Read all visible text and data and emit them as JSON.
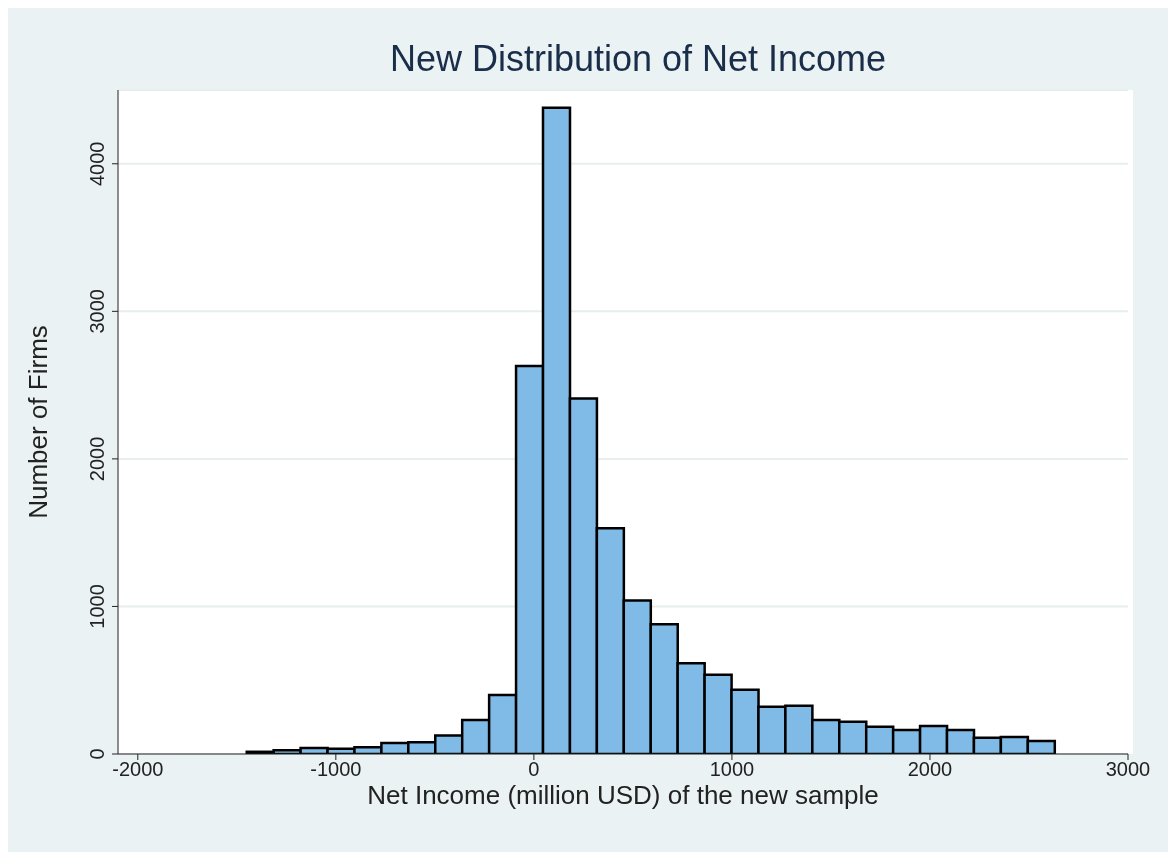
{
  "chart_data": {
    "type": "histogram",
    "title": "New Distribution of Net Income",
    "xlabel": "Net Income (million USD) of the new sample",
    "ylabel": "Number of Firms",
    "bins": [
      -1450,
      -1314,
      -1178,
      -1042,
      -906,
      -770,
      -634,
      -498,
      -362,
      -226,
      -90,
      46,
      182,
      318,
      454,
      590,
      726,
      862,
      998,
      1134,
      1270,
      1406,
      1542,
      1678,
      1814,
      1950,
      2086,
      2222,
      2358,
      2494,
      2630
    ],
    "values": [
      15,
      25,
      40,
      35,
      45,
      75,
      80,
      125,
      230,
      400,
      2630,
      4380,
      2410,
      1530,
      1040,
      880,
      615,
      537,
      435,
      320,
      327,
      231,
      218,
      184,
      163,
      190,
      163,
      110,
      115,
      88
    ],
    "color": "#7fbbe6",
    "xlim": [
      -2100,
      3000
    ],
    "xticks": [
      -2000,
      -1000,
      0,
      1000,
      2000,
      3000
    ],
    "ylim": [
      0,
      4500
    ],
    "yticks": [
      0,
      1000,
      2000,
      3000,
      4000
    ],
    "grid": "y",
    "legend": false
  }
}
